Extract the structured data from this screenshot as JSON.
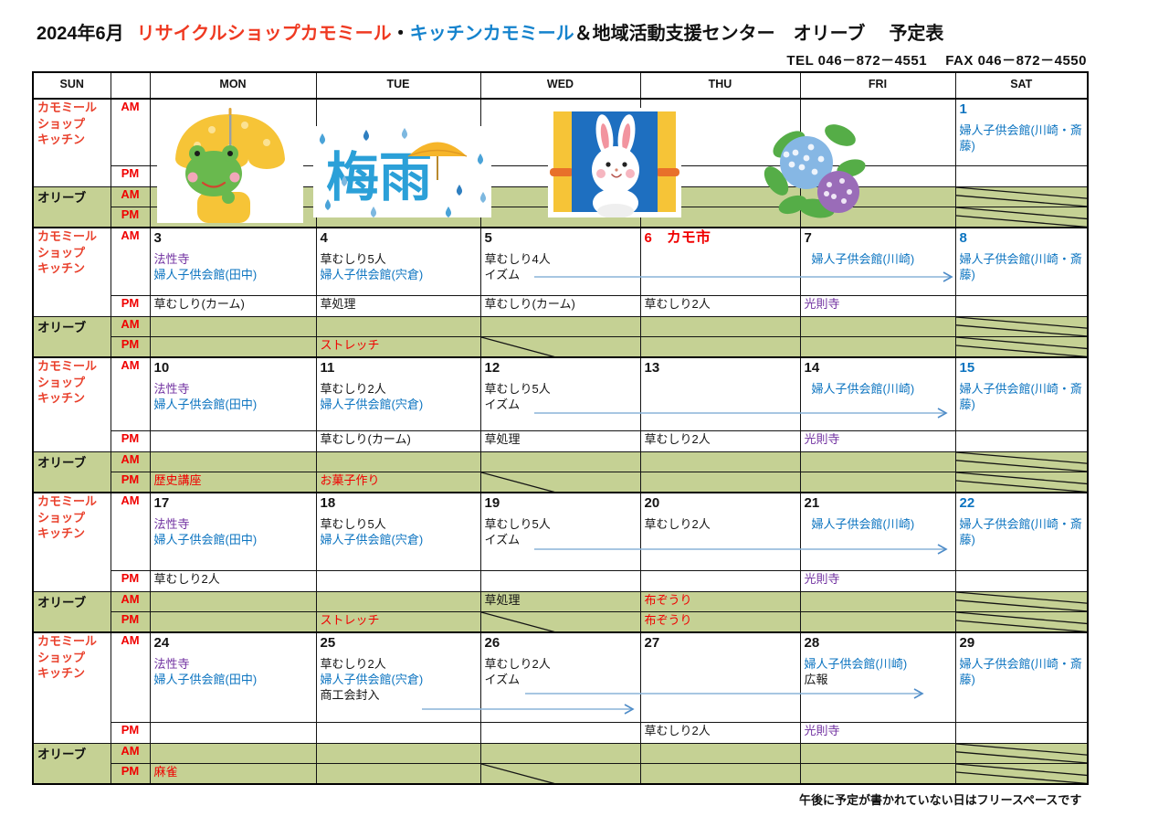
{
  "title": {
    "month": "2024年6月",
    "part_red": "リサイクルショップカモミール",
    "separator": "・",
    "part_blue": "キッチンカモミール",
    "part_rest": "＆地域活動支援センター　オリーブ",
    "suffix": "予定表"
  },
  "contact": "TEL 046－872－4551　 FAX 046－872－4550",
  "header": {
    "cells": [
      "SUN",
      "",
      "MON",
      "TUE",
      "WED",
      "THU",
      "FRI",
      "SAT"
    ]
  },
  "labels": {
    "kamomiru": [
      "カモミール",
      "ショップ",
      "キッチン"
    ],
    "olive": "オリーブ",
    "am": "AM",
    "pm": "PM"
  },
  "images": {
    "tsuyu_text": "梅雨",
    "names": [
      "frog-with-umbrella-illustration",
      "rainy-season-tsuyu-illustration",
      "rabbit-in-window-illustration",
      "hydrangea-illustration"
    ]
  },
  "colors": {
    "accent_red": "#f00000",
    "accent_blue": "#0c74c0",
    "accent_purple": "#7030a0",
    "olive_bg": "#c5d194",
    "arrow_blue": "#5b9bd5",
    "title_red": "#ef3a22",
    "title_blue": "#1583cd"
  },
  "footer_note": "午後に予定が書かれていない日はフリースペースです",
  "weeks": [
    {
      "am": [
        {
          "image": "frog-with-umbrella-illustration"
        },
        {
          "image": "rainy-season-tsuyu-illustration"
        },
        {
          "image": "rabbit-in-window-illustration"
        },
        {
          "image": "hydrangea-illustration"
        },
        {},
        {
          "day": "1",
          "day_color": "blue",
          "events": [
            {
              "t": "婦人子供会館(川崎・斎藤)",
              "c": "blue"
            }
          ]
        }
      ],
      "pm": [
        {},
        {},
        {},
        {},
        {},
        {}
      ],
      "olive_am": [
        {},
        {},
        {},
        {},
        {},
        {
          "struck": true
        }
      ],
      "olive_pm": [
        {},
        {},
        {},
        {},
        {},
        {
          "struck": true
        }
      ]
    },
    {
      "am": [
        {
          "day": "3",
          "events": [
            {
              "t": "法性寺",
              "c": "purple"
            },
            {
              "t": "婦人子供会館(田中)",
              "c": "blue"
            }
          ]
        },
        {
          "day": "4",
          "events": [
            {
              "t": "草むしり5人",
              "c": "black"
            },
            {
              "t": "婦人子供会館(宍倉)",
              "c": "blue"
            }
          ]
        },
        {
          "day": "5",
          "events": [
            {
              "t": "草むしり4人",
              "c": "black"
            },
            {
              "t": "イズム",
              "c": "black"
            }
          ]
        },
        {
          "day": "6",
          "day_color": "red",
          "day_note": "カモ市",
          "day_note_color": "red"
        },
        {
          "day": "7",
          "indent": true,
          "events": [
            {
              "t": "婦人子供会館(川崎)",
              "c": "blue"
            }
          ]
        },
        {
          "day": "8",
          "day_color": "blue",
          "events": [
            {
              "t": "婦人子供会館(川崎・斎藤)",
              "c": "blue"
            }
          ]
        }
      ],
      "pm": [
        {
          "events": [
            {
              "t": "草むしり(カーム)",
              "c": "black"
            }
          ]
        },
        {
          "events": [
            {
              "t": "草処理",
              "c": "black"
            }
          ]
        },
        {
          "events": [
            {
              "t": "草むしり(カーム)",
              "c": "black"
            }
          ]
        },
        {
          "events": [
            {
              "t": "草むしり2人",
              "c": "black"
            }
          ]
        },
        {
          "events": [
            {
              "t": "光則寺",
              "c": "purple"
            }
          ]
        },
        {}
      ],
      "olive_am": [
        {},
        {},
        {},
        {},
        {},
        {
          "struck": true
        }
      ],
      "olive_pm": [
        {},
        {
          "events": [
            {
              "t": "ストレッチ",
              "c": "red"
            }
          ]
        },
        {
          "wstruck": true
        },
        {},
        {},
        {
          "struck": true
        }
      ]
    },
    {
      "am": [
        {
          "day": "10",
          "events": [
            {
              "t": "法性寺",
              "c": "purple"
            },
            {
              "t": "婦人子供会館(田中)",
              "c": "blue"
            }
          ]
        },
        {
          "day": "11",
          "events": [
            {
              "t": "草むしり2人",
              "c": "black"
            },
            {
              "t": "婦人子供会館(宍倉)",
              "c": "blue"
            }
          ]
        },
        {
          "day": "12",
          "events": [
            {
              "t": "草むしり5人",
              "c": "black"
            },
            {
              "t": "イズム",
              "c": "black"
            }
          ]
        },
        {
          "day": "13"
        },
        {
          "day": "14",
          "indent": true,
          "events": [
            {
              "t": "婦人子供会館(川崎)",
              "c": "blue"
            }
          ]
        },
        {
          "day": "15",
          "day_color": "blue",
          "events": [
            {
              "t": "婦人子供会館(川崎・斎藤)",
              "c": "blue"
            }
          ]
        }
      ],
      "pm": [
        {},
        {
          "events": [
            {
              "t": "草むしり(カーム)",
              "c": "black"
            }
          ]
        },
        {
          "events": [
            {
              "t": "草処理",
              "c": "black"
            }
          ]
        },
        {
          "events": [
            {
              "t": "草むしり2人",
              "c": "black"
            }
          ]
        },
        {
          "events": [
            {
              "t": "光則寺",
              "c": "purple"
            }
          ]
        },
        {}
      ],
      "olive_am": [
        {},
        {},
        {},
        {},
        {},
        {
          "struck": true
        }
      ],
      "olive_pm": [
        {
          "events": [
            {
              "t": "歴史講座",
              "c": "red"
            }
          ]
        },
        {
          "events": [
            {
              "t": "お菓子作り",
              "c": "red"
            }
          ]
        },
        {
          "wstruck": true
        },
        {},
        {},
        {
          "struck": true
        }
      ]
    },
    {
      "am": [
        {
          "day": "17",
          "events": [
            {
              "t": "法性寺",
              "c": "purple"
            },
            {
              "t": "婦人子供会館(田中)",
              "c": "blue"
            }
          ]
        },
        {
          "day": "18",
          "events": [
            {
              "t": "草むしり5人",
              "c": "black"
            },
            {
              "t": "婦人子供会館(宍倉)",
              "c": "blue"
            }
          ]
        },
        {
          "day": "19",
          "events": [
            {
              "t": "草むしり5人",
              "c": "black"
            },
            {
              "t": "イズム",
              "c": "black"
            }
          ]
        },
        {
          "day": "20",
          "events": [
            {
              "t": "草むしり2人",
              "c": "black"
            }
          ]
        },
        {
          "day": "21",
          "indent": true,
          "events": [
            {
              "t": "婦人子供会館(川崎)",
              "c": "blue"
            }
          ]
        },
        {
          "day": "22",
          "day_color": "blue",
          "events": [
            {
              "t": "婦人子供会館(川崎・斎藤)",
              "c": "blue"
            }
          ]
        }
      ],
      "pm": [
        {
          "events": [
            {
              "t": "草むしり2人",
              "c": "black"
            }
          ]
        },
        {},
        {},
        {},
        {
          "events": [
            {
              "t": "光則寺",
              "c": "purple"
            }
          ]
        },
        {}
      ],
      "olive_am": [
        {},
        {},
        {
          "events": [
            {
              "t": "草処理",
              "c": "black"
            }
          ]
        },
        {
          "events": [
            {
              "t": "布ぞうり",
              "c": "red"
            }
          ]
        },
        {},
        {
          "struck": true
        }
      ],
      "olive_pm": [
        {},
        {
          "events": [
            {
              "t": "ストレッチ",
              "c": "red"
            }
          ]
        },
        {
          "wstruck": true
        },
        {
          "events": [
            {
              "t": "布ぞうり",
              "c": "red"
            }
          ]
        },
        {},
        {
          "struck": true
        }
      ]
    },
    {
      "am": [
        {
          "day": "24",
          "events": [
            {
              "t": "法性寺",
              "c": "purple"
            },
            {
              "t": "婦人子供会館(田中)",
              "c": "blue"
            }
          ]
        },
        {
          "day": "25",
          "events": [
            {
              "t": "草むしり2人",
              "c": "black"
            },
            {
              "t": "婦人子供会館(宍倉)",
              "c": "blue"
            },
            {
              "t": "商工会封入",
              "c": "black"
            }
          ]
        },
        {
          "day": "26",
          "events": [
            {
              "t": "草むしり2人",
              "c": "black"
            },
            {
              "t": "イズム",
              "c": "black"
            }
          ]
        },
        {
          "day": "27"
        },
        {
          "day": "28",
          "events": [
            {
              "t": "婦人子供会館(川崎)",
              "c": "blue"
            },
            {
              "t": "広報",
              "c": "black"
            }
          ]
        },
        {
          "day": "29",
          "events": [
            {
              "t": "婦人子供会館(川崎・斎藤)",
              "c": "blue"
            }
          ]
        }
      ],
      "pm": [
        {},
        {},
        {},
        {
          "events": [
            {
              "t": "草むしり2人",
              "c": "black"
            }
          ]
        },
        {
          "events": [
            {
              "t": "光則寺",
              "c": "purple"
            }
          ]
        },
        {}
      ],
      "olive_am": [
        {},
        {},
        {},
        {},
        {},
        {
          "struck": true
        }
      ],
      "olive_pm": [
        {
          "events": [
            {
              "t": "麻雀",
              "c": "red"
            }
          ]
        },
        {},
        {
          "wstruck": true
        },
        {},
        {},
        {
          "struck": true
        }
      ]
    }
  ]
}
